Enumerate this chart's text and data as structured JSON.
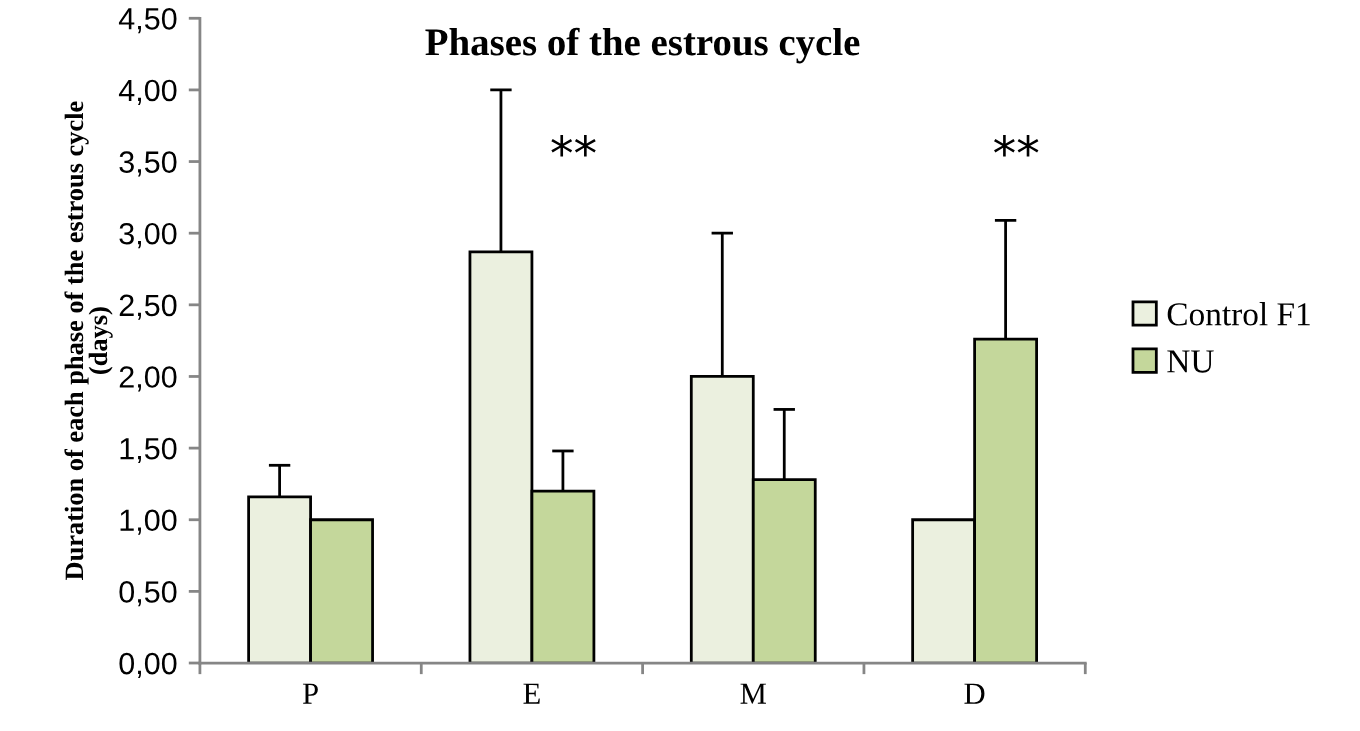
{
  "chart_data": {
    "type": "bar",
    "title": "Phases of the estrous cycle",
    "ylabel": "Duration of each phase of the estrous cycle\n(days)",
    "categories": [
      "P",
      "E",
      "M",
      "D"
    ],
    "series": [
      {
        "name": "Control F1",
        "color": "#ebf0df",
        "values": [
          1.16,
          2.87,
          2.0,
          1.0
        ],
        "errors": [
          [
            1.16,
            1.38
          ],
          [
            2.87,
            4.0
          ],
          [
            2.0,
            3.0
          ],
          null
        ]
      },
      {
        "name": "NU",
        "color": "#c4d79b",
        "values": [
          1.0,
          1.2,
          1.28,
          2.26
        ],
        "errors": [
          null,
          [
            1.2,
            1.48
          ],
          [
            1.28,
            1.77
          ],
          [
            2.26,
            3.09
          ]
        ]
      }
    ],
    "ylim": [
      0,
      4.5
    ],
    "yticks": [
      {
        "value": 0,
        "label": "0,00"
      },
      {
        "value": 0.5,
        "label": "0,50"
      },
      {
        "value": 1,
        "label": "1,00"
      },
      {
        "value": 1.5,
        "label": "1,50"
      },
      {
        "value": 2,
        "label": "2,00"
      },
      {
        "value": 2.5,
        "label": "2,50"
      },
      {
        "value": 3,
        "label": "3,00"
      },
      {
        "value": 3.5,
        "label": "3,50"
      },
      {
        "value": 4,
        "label": "4,00"
      },
      {
        "value": 4.5,
        "label": "4,50"
      }
    ],
    "annotations": [
      "**",
      "**"
    ],
    "legend": "right",
    "grid": false
  }
}
